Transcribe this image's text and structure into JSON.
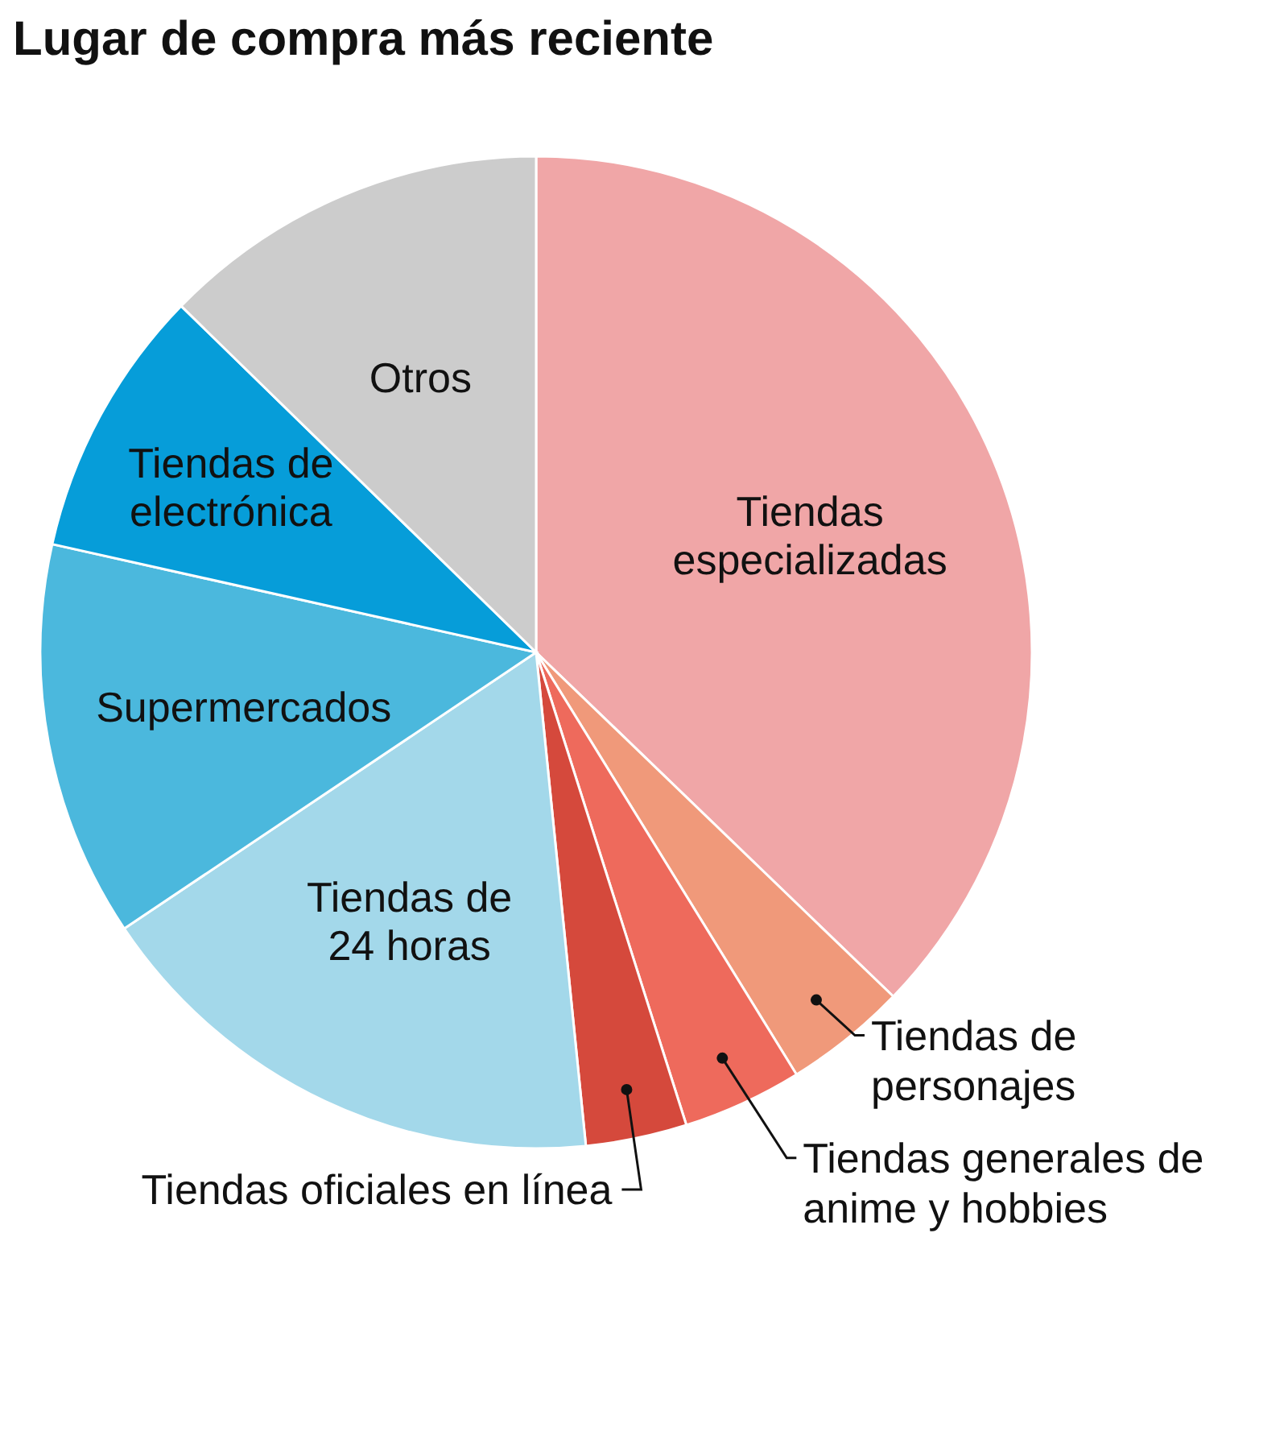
{
  "chart_data": {
    "type": "pie",
    "title": "Lugar de compra más reciente",
    "categories": [
      "Tiendas especializadas",
      "Tiendas de personajes",
      "Tiendas generales de anime y hobbies",
      "Tiendas oficiales en línea",
      "Tiendas de 24 horas",
      "Supermercados",
      "Tiendas de electrónica",
      "Otros"
    ],
    "values": [
      37.2,
      4.0,
      3.9,
      3.3,
      17.2,
      12.9,
      8.8,
      12.7
    ],
    "colors": [
      "#f0a6a7",
      "#f0997a",
      "#ee6a5c",
      "#d5493c",
      "#a3d8ea",
      "#4bb8dd",
      "#069dd9",
      "#cccccc"
    ]
  }
}
